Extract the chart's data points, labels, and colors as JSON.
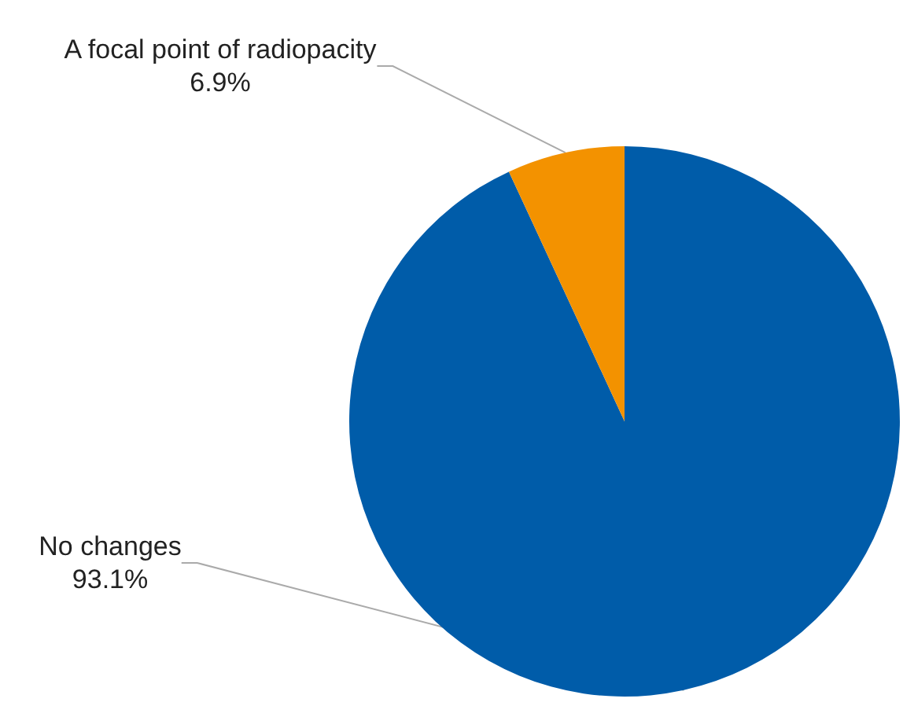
{
  "chart_data": {
    "type": "pie",
    "categories": [
      "No changes",
      "A focal point of radiopacity"
    ],
    "values": [
      93.1,
      6.9
    ],
    "value_labels": [
      "93.1%",
      "6.9%"
    ],
    "colors": [
      "#005ca9",
      "#f39200"
    ],
    "legend": false
  }
}
